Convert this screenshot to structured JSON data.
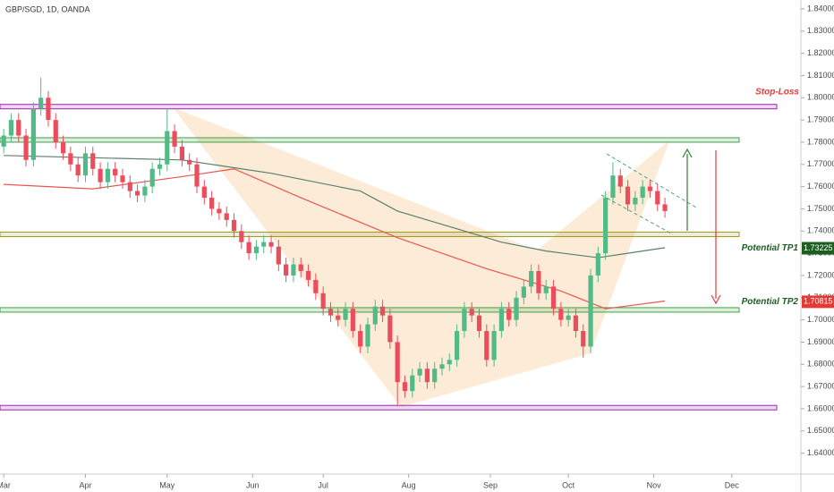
{
  "chart_data": {
    "type": "candlestick",
    "title": "GBP/SGD, 1D, OANDA",
    "open": [
      1.778,
      1.783,
      1.79,
      1.783,
      1.772,
      1.795,
      1.8,
      1.79,
      1.78,
      1.775,
      1.77,
      1.765,
      1.775,
      1.768,
      1.762,
      1.768,
      1.765,
      1.762,
      1.758,
      1.756,
      1.76,
      1.768,
      1.77,
      1.785,
      1.778,
      1.772,
      1.77,
      1.76,
      1.755,
      1.75,
      1.748,
      1.745,
      1.74,
      1.735,
      1.73,
      1.733,
      1.735,
      1.733,
      1.725,
      1.72,
      1.725,
      1.722,
      1.718,
      1.712,
      1.705,
      1.702,
      1.7,
      1.705,
      1.695,
      1.688,
      1.698,
      1.706,
      1.702,
      1.69,
      1.672,
      1.668,
      1.675,
      1.678,
      1.672,
      1.678,
      1.68,
      1.682,
      1.695,
      1.705,
      1.702,
      1.695,
      1.682,
      1.695,
      1.705,
      1.7,
      1.71,
      1.715,
      1.722,
      1.712,
      1.715,
      1.705,
      1.7,
      1.702,
      1.695,
      1.688,
      1.72,
      1.73,
      1.755,
      1.765,
      1.76,
      1.752,
      1.755,
      1.76,
      1.758,
      1.752
    ],
    "high": [
      1.786,
      1.793,
      1.793,
      1.786,
      1.798,
      1.809,
      1.803,
      1.793,
      1.783,
      1.778,
      1.773,
      1.778,
      1.778,
      1.771,
      1.771,
      1.771,
      1.768,
      1.765,
      1.761,
      1.763,
      1.771,
      1.773,
      1.795,
      1.788,
      1.781,
      1.775,
      1.773,
      1.763,
      1.758,
      1.753,
      1.751,
      1.748,
      1.743,
      1.738,
      1.736,
      1.738,
      1.738,
      1.736,
      1.728,
      1.728,
      1.728,
      1.725,
      1.721,
      1.715,
      1.708,
      1.705,
      1.708,
      1.708,
      1.698,
      1.701,
      1.709,
      1.709,
      1.705,
      1.693,
      1.675,
      1.678,
      1.681,
      1.681,
      1.681,
      1.683,
      1.685,
      1.698,
      1.708,
      1.708,
      1.705,
      1.698,
      1.698,
      1.708,
      1.708,
      1.713,
      1.718,
      1.725,
      1.725,
      1.718,
      1.718,
      1.708,
      1.705,
      1.705,
      1.698,
      1.723,
      1.733,
      1.758,
      1.771,
      1.768,
      1.763,
      1.758,
      1.763,
      1.763,
      1.761,
      1.755
    ],
    "low": [
      1.775,
      1.78,
      1.78,
      1.769,
      1.769,
      1.792,
      1.787,
      1.777,
      1.772,
      1.767,
      1.762,
      1.762,
      1.765,
      1.759,
      1.759,
      1.762,
      1.759,
      1.755,
      1.753,
      1.753,
      1.757,
      1.765,
      1.767,
      1.775,
      1.769,
      1.767,
      1.757,
      1.752,
      1.747,
      1.745,
      1.742,
      1.737,
      1.732,
      1.727,
      1.727,
      1.73,
      1.73,
      1.722,
      1.717,
      1.717,
      1.719,
      1.715,
      1.709,
      1.702,
      1.699,
      1.697,
      1.697,
      1.692,
      1.685,
      1.685,
      1.695,
      1.699,
      1.687,
      1.661,
      1.665,
      1.665,
      1.672,
      1.669,
      1.669,
      1.675,
      1.677,
      1.679,
      1.692,
      1.699,
      1.692,
      1.679,
      1.679,
      1.692,
      1.697,
      1.697,
      1.707,
      1.712,
      1.709,
      1.709,
      1.702,
      1.697,
      1.697,
      1.692,
      1.683,
      1.685,
      1.717,
      1.727,
      1.752,
      1.757,
      1.749,
      1.749,
      1.752,
      1.755,
      1.749,
      1.746
    ],
    "close": [
      1.783,
      1.79,
      1.783,
      1.772,
      1.795,
      1.8,
      1.79,
      1.78,
      1.775,
      1.77,
      1.765,
      1.775,
      1.768,
      1.762,
      1.768,
      1.765,
      1.762,
      1.758,
      1.756,
      1.76,
      1.768,
      1.77,
      1.785,
      1.778,
      1.772,
      1.77,
      1.76,
      1.755,
      1.75,
      1.748,
      1.745,
      1.74,
      1.735,
      1.73,
      1.733,
      1.735,
      1.733,
      1.725,
      1.72,
      1.725,
      1.722,
      1.718,
      1.712,
      1.705,
      1.702,
      1.7,
      1.705,
      1.695,
      1.688,
      1.698,
      1.706,
      1.702,
      1.69,
      1.672,
      1.668,
      1.675,
      1.678,
      1.672,
      1.678,
      1.68,
      1.682,
      1.695,
      1.705,
      1.702,
      1.695,
      1.682,
      1.695,
      1.705,
      1.7,
      1.71,
      1.715,
      1.722,
      1.712,
      1.715,
      1.705,
      1.7,
      1.702,
      1.695,
      1.688,
      1.72,
      1.73,
      1.755,
      1.765,
      1.76,
      1.752,
      1.755,
      1.76,
      1.758,
      1.752,
      1.749
    ],
    "up_color": "#53b987",
    "down_color": "#eb4d5c",
    "moving_averages": [
      {
        "color": "#5b7f6e",
        "x": [
          0,
          24,
          36,
          48,
          53,
          60,
          67,
          73,
          80,
          84,
          89
        ],
        "values": [
          1.774,
          1.772,
          1.766,
          1.758,
          1.749,
          1.742,
          1.735,
          1.731,
          1.728,
          1.73,
          1.7325
        ]
      },
      {
        "color": "#e8574f",
        "x": [
          0,
          12,
          24,
          31,
          40,
          53,
          65,
          75,
          81,
          89
        ],
        "values": [
          1.761,
          1.759,
          1.7645,
          1.768,
          1.755,
          1.737,
          1.723,
          1.713,
          1.705,
          1.7085
        ]
      }
    ],
    "levels": [
      {
        "value": 1.796,
        "color": "#9c27b0"
      },
      {
        "value": 1.781,
        "color": "#43a047"
      },
      {
        "value": 1.7385,
        "color": "#9e9d24"
      },
      {
        "value": 1.7045,
        "color": "#43a047"
      },
      {
        "value": 1.6605,
        "color": "#9c27b0"
      }
    ],
    "annotations": [
      {
        "text": "Stop-Loss",
        "value": 1.8025,
        "color": "#e53935"
      }
    ],
    "targets": [
      {
        "text": "Potential TP1",
        "value": 1.73225,
        "color": "#1b5e20"
      },
      {
        "text": "Potential TP2",
        "value": 1.70815,
        "color": "#e53935"
      }
    ],
    "xlim": [
      -0.5,
      107.3
    ],
    "ylim": [
      1.6303,
      1.844
    ],
    "xticks": [
      {
        "value": 0,
        "label": "Mar"
      },
      {
        "value": 11,
        "label": "Apr"
      },
      {
        "value": 22,
        "label": "May"
      },
      {
        "value": 33.5,
        "label": "Jun"
      },
      {
        "value": 43,
        "label": "Jul"
      },
      {
        "value": 54.5,
        "label": "Aug"
      },
      {
        "value": 65.5,
        "label": "Sep"
      },
      {
        "value": 76,
        "label": "Oct"
      },
      {
        "value": 87.5,
        "label": "Nov"
      },
      {
        "value": 98,
        "label": "Dec"
      }
    ],
    "yticks": [
      {
        "value": 1.64,
        "label": "1.64000"
      },
      {
        "value": 1.65,
        "label": "1.65000"
      },
      {
        "value": 1.66,
        "label": "1.66000"
      },
      {
        "value": 1.67,
        "label": "1.67000"
      },
      {
        "value": 1.68,
        "label": "1.68000"
      },
      {
        "value": 1.69,
        "label": "1.69000"
      },
      {
        "value": 1.7,
        "label": "1.70000"
      },
      {
        "value": 1.71,
        "label": "1.71000"
      },
      {
        "value": 1.72,
        "label": "1.72000"
      },
      {
        "value": 1.73,
        "label": "1.73000"
      },
      {
        "value": 1.74,
        "label": "1.74000"
      },
      {
        "value": 1.75,
        "label": "1.75000"
      },
      {
        "value": 1.76,
        "label": "1.76000"
      },
      {
        "value": 1.77,
        "label": "1.77000"
      },
      {
        "value": 1.78,
        "label": "1.78000"
      },
      {
        "value": 1.79,
        "label": "1.79000"
      },
      {
        "value": 1.8,
        "label": "1.80000"
      },
      {
        "value": 1.81,
        "label": "1.81000"
      },
      {
        "value": 1.82,
        "label": "1.82000"
      },
      {
        "value": 1.83,
        "label": "1.83000"
      },
      {
        "value": 1.84,
        "label": "1.84000"
      }
    ]
  }
}
